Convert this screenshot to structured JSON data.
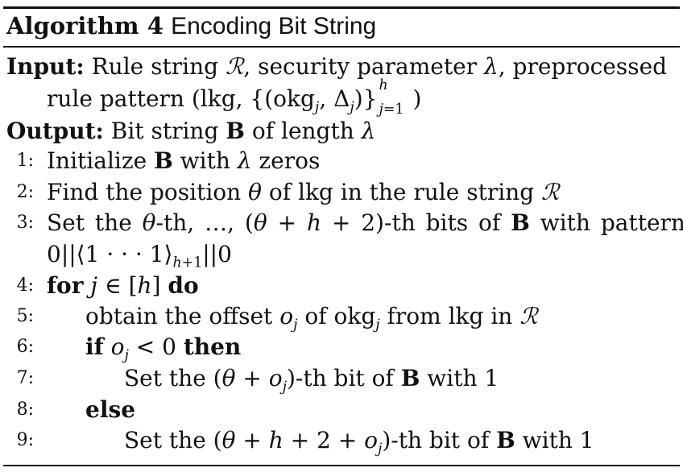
{
  "caption": {
    "label": "Algorithm 4",
    "title": "Encoding Bit String"
  },
  "input": {
    "keyword": "Input:",
    "line1": "Rule string ℛ, security parameter λ, preprocessed",
    "line2": "rule pattern (lkg, {(okg_j, Δ_j)}_{j=1}^h)"
  },
  "output": {
    "keyword": "Output:",
    "text": "Bit string B of length λ"
  },
  "steps": [
    {
      "num": "1:",
      "text": "Initialize B with λ zeros"
    },
    {
      "num": "2:",
      "text": "Find the position θ of lkg in the rule string ℛ"
    },
    {
      "num": "3:",
      "text": "Set the θ-th, …, (θ + h + 2)-th bits of B with pattern",
      "cont": "0||⟨1 ··· 1⟩_{h+1}||0"
    },
    {
      "num": "4:",
      "text": "for j ∈ [h] do"
    },
    {
      "num": "5:",
      "text": "obtain the offset o_j of okg_j from lkg in ℛ"
    },
    {
      "num": "6:",
      "text": "if o_j < 0 then"
    },
    {
      "num": "7:",
      "text": "Set the (θ + o_j)-th bit of B with 1"
    },
    {
      "num": "8:",
      "text": "else"
    },
    {
      "num": "9:",
      "text": "Set the (θ + h + 2 + o_j)-th bit of B with 1"
    }
  ]
}
